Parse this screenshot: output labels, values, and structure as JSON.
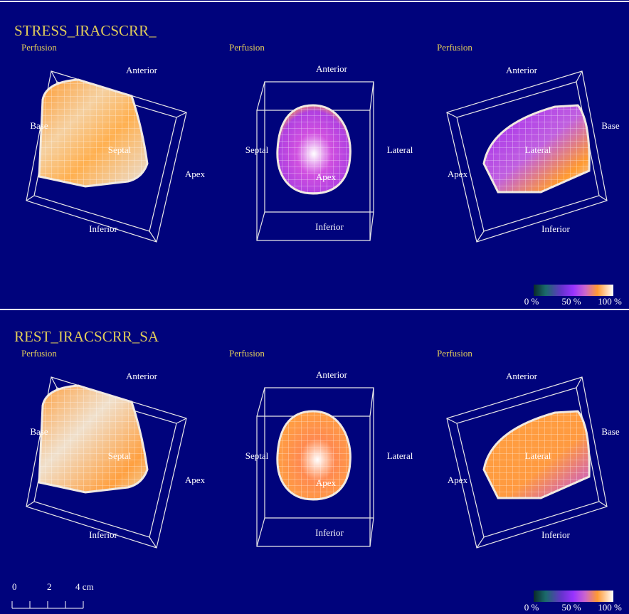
{
  "panels": [
    {
      "title": "STRESS_IRACSCRR_",
      "views": [
        {
          "label": "Perfusion",
          "top": "Anterior",
          "left": "Base",
          "center": "Septal",
          "right": "Apex",
          "bottom": "Inferior"
        },
        {
          "label": "Perfusion",
          "top": "Anterior",
          "left": "Septal",
          "center": "Apex",
          "right": "Lateral",
          "bottom": "Inferior"
        },
        {
          "label": "Perfusion",
          "top": "Anterior",
          "left": "Apex",
          "center": "Lateral",
          "right": "Base",
          "bottom": "Inferior"
        }
      ],
      "colorbar": [
        "0 %",
        "50 %",
        "100 %"
      ]
    },
    {
      "title": "REST_IRACSCRR_SA",
      "views": [
        {
          "label": "Perfusion",
          "top": "Anterior",
          "left": "Base",
          "center": "Septal",
          "right": "Apex",
          "bottom": "Inferior"
        },
        {
          "label": "Perfusion",
          "top": "Anterior",
          "left": "Septal",
          "center": "Apex",
          "right": "Lateral",
          "bottom": "Inferior"
        },
        {
          "label": "Perfusion",
          "top": "Anterior",
          "left": "Apex",
          "center": "Lateral",
          "right": "Base",
          "bottom": "Inferior"
        }
      ],
      "colorbar": [
        "0 %",
        "50 %",
        "100 %"
      ]
    }
  ],
  "scale": [
    "0",
    "2",
    "4 cm"
  ]
}
